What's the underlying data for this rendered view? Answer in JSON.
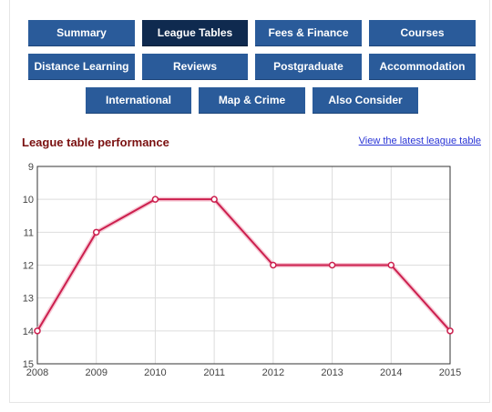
{
  "nav": {
    "summary": "Summary",
    "league_tables": "League Tables",
    "fees_finance": "Fees & Finance",
    "courses": "Courses",
    "distance_learning": "Distance Learning",
    "reviews": "Reviews",
    "postgraduate": "Postgraduate",
    "accommodation": "Accommodation",
    "international": "International",
    "map_crime": "Map & Crime",
    "also_consider": "Also Consider"
  },
  "section": {
    "title": "League table performance",
    "link": "View the latest league table"
  },
  "colors": {
    "nav_button": "#2a5b9a",
    "nav_active": "#0f2a4f",
    "line": "#cc1f4e",
    "title": "#7a1010",
    "link": "#2a35d6"
  },
  "chart_data": {
    "type": "line",
    "x": [
      2008,
      2009,
      2010,
      2011,
      2012,
      2013,
      2014,
      2015
    ],
    "series": [
      {
        "values": [
          14,
          11,
          10,
          10,
          12,
          12,
          12,
          14
        ]
      }
    ],
    "title": "",
    "xlabel": "",
    "ylabel": "",
    "ylim": [
      9,
      15
    ],
    "y_reversed": true,
    "y_ticks": [
      9,
      10,
      11,
      12,
      13,
      14,
      15
    ],
    "x_ticks": [
      2008,
      2009,
      2010,
      2011,
      2012,
      2013,
      2014,
      2015
    ],
    "grid": true,
    "legend": "none"
  }
}
